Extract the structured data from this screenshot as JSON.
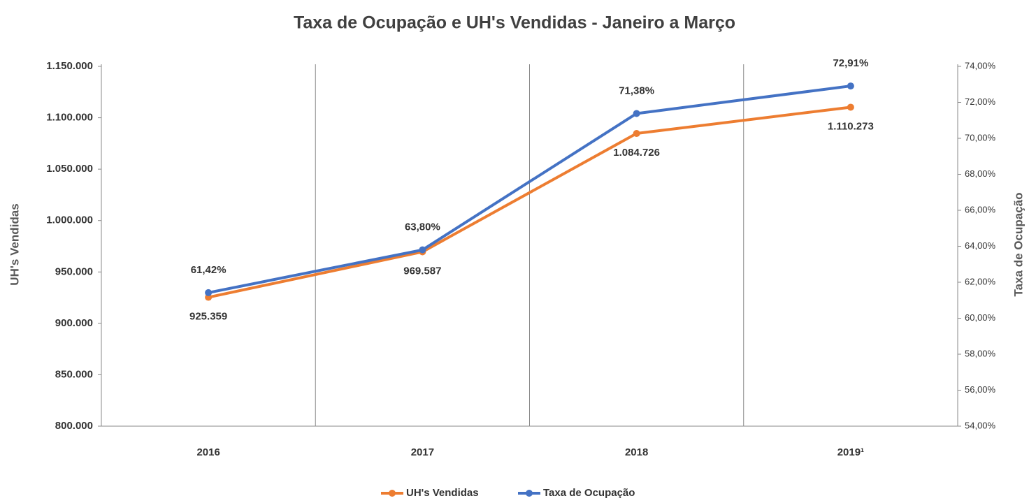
{
  "chart_data": {
    "type": "line",
    "title": "Taxa de Ocupação e UH's Vendidas - Janeiro a Março",
    "y_label": "UH's Vendidas",
    "y2_label": "Taxa de Ocupação",
    "categories": [
      "2016",
      "2017",
      "2018",
      "2019¹"
    ],
    "series": [
      {
        "name": "UH's Vendidas",
        "color": "#ed7d31",
        "values": [
          925359,
          969587,
          1084726,
          1110273
        ],
        "value_labels": [
          "925.359",
          "969.587",
          "1.084.726",
          "1.110.273"
        ]
      },
      {
        "name": "Taxa de Ocupação",
        "color": "#4472c4",
        "axis": "y2",
        "values": [
          61.42,
          63.8,
          71.38,
          72.91
        ],
        "value_labels": [
          "61,42%",
          "63,80%",
          "71,38%",
          "72,91%"
        ]
      }
    ],
    "ylim": [
      800000,
      1150000
    ],
    "yticks": [
      {
        "value": 800000,
        "label": "800.000"
      },
      {
        "value": 850000,
        "label": "850.000"
      },
      {
        "value": 900000,
        "label": "900.000"
      },
      {
        "value": 950000,
        "label": "950.000"
      },
      {
        "value": 1000000,
        "label": "1.000.000"
      },
      {
        "value": 1050000,
        "label": "1.050.000"
      },
      {
        "value": 1100000,
        "label": "1.100.000"
      },
      {
        "value": 1150000,
        "label": "1.150.000"
      }
    ],
    "y2lim": [
      54,
      74
    ],
    "y2ticks": [
      {
        "value": 54,
        "label": "54,00%"
      },
      {
        "value": 56,
        "label": "56,00%"
      },
      {
        "value": 58,
        "label": "58,00%"
      },
      {
        "value": 60,
        "label": "60,00%"
      },
      {
        "value": 62,
        "label": "62,00%"
      },
      {
        "value": 64,
        "label": "64,00%"
      },
      {
        "value": 66,
        "label": "66,00%"
      },
      {
        "value": 68,
        "label": "68,00%"
      },
      {
        "value": 70,
        "label": "70,00%"
      },
      {
        "value": 72,
        "label": "72,00%"
      },
      {
        "value": 74,
        "label": "74,00%"
      }
    ],
    "grid": true,
    "legend": "bottom"
  }
}
